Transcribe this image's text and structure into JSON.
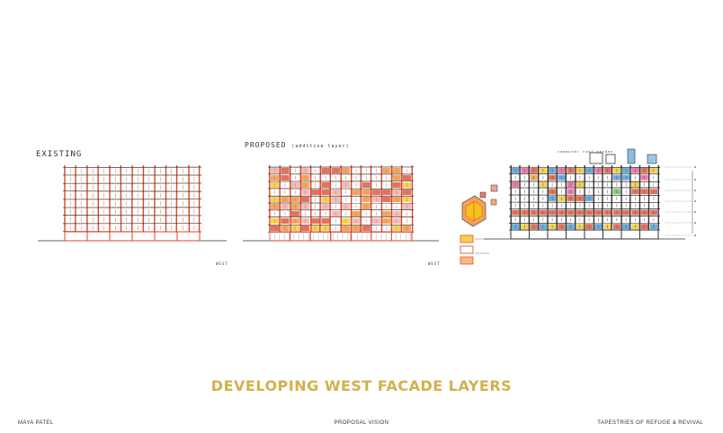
{
  "sketches": {
    "existing": {
      "label": "EXISTING",
      "scale_note": "WEST"
    },
    "proposed": {
      "label": "PROPOSED",
      "label_note": "(additive layer)",
      "scale_note": "WEST"
    },
    "layered": {
      "roof_note": "communal roof garden"
    }
  },
  "title": "DEVELOPING WEST FACADE LAYERS",
  "footer": {
    "author": "MAYA PATEL",
    "center": "PROPOSAL VISION",
    "project": "TAPESTRIES OF REFUGE & REVIVAL"
  },
  "colors": {
    "accent_title": "#d2b14a",
    "sketch_red": "#d9452b",
    "sketch_orange": "#f08a2a",
    "sketch_yellow": "#f5c518",
    "sketch_blue": "#3b8fd4",
    "sketch_pink": "#e94f8a",
    "sketch_green": "#62b84a"
  }
}
